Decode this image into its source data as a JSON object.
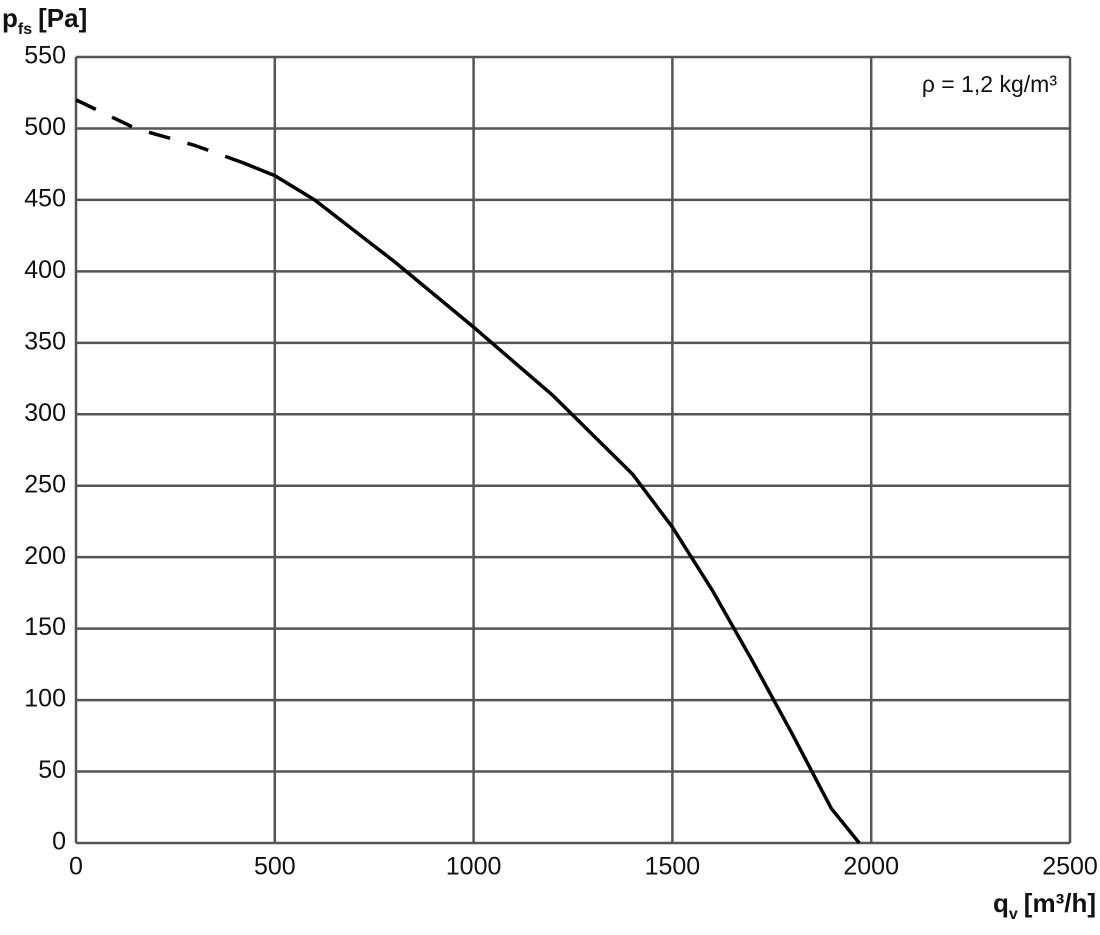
{
  "chart_data": {
    "type": "line",
    "y_label": {
      "symbol": "p",
      "subscript": "fs",
      "unit": "[Pa]"
    },
    "x_label": {
      "symbol": "q",
      "subscript": "v",
      "unit": "[m³/h]"
    },
    "annotation": "ρ = 1,2 kg/m³",
    "x": [
      0,
      150,
      300,
      420,
      500,
      600,
      800,
      1000,
      1200,
      1400,
      1500,
      1600,
      1700,
      1800,
      1900,
      1970
    ],
    "series": [
      {
        "color": "#000000",
        "dashed": true,
        "values": [
          520,
          500,
          488,
          476,
          null,
          null,
          null,
          null,
          null,
          null,
          null,
          null,
          null,
          null,
          null,
          null
        ]
      },
      {
        "color": "#000000",
        "dashed": false,
        "values": [
          null,
          null,
          null,
          476,
          467,
          450,
          407,
          361,
          313,
          258,
          221,
          177,
          128,
          77,
          24,
          0
        ]
      }
    ],
    "xlim": [
      0,
      2500
    ],
    "xticks": [
      0,
      500,
      1000,
      1500,
      2000,
      2500
    ],
    "ylim": [
      0,
      550
    ],
    "yticks": [
      0,
      50,
      100,
      150,
      200,
      250,
      300,
      350,
      400,
      450,
      500,
      550
    ],
    "grid": true,
    "grid_color": "#555555"
  }
}
